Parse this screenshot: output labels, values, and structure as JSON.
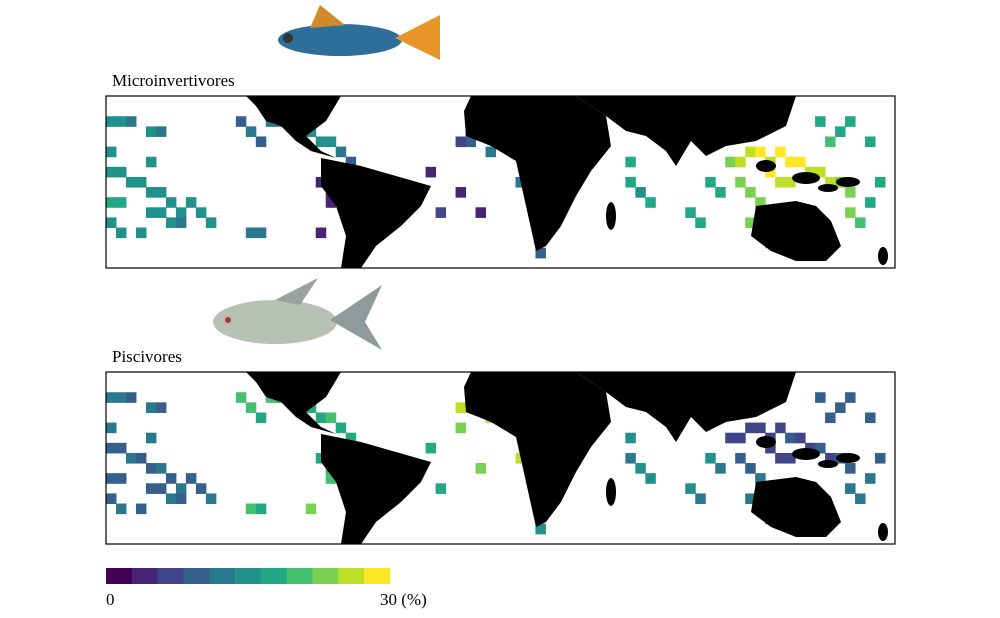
{
  "panels": [
    {
      "title": "Microinvertivores",
      "cells": [
        [
          0,
          2,
          14
        ],
        [
          1,
          2,
          14
        ],
        [
          2,
          2,
          13
        ],
        [
          4,
          3,
          14
        ],
        [
          5,
          3,
          13
        ],
        [
          0,
          5,
          15
        ],
        [
          0,
          7,
          16
        ],
        [
          1,
          7,
          15
        ],
        [
          2,
          8,
          15
        ],
        [
          3,
          8,
          16
        ],
        [
          4,
          9,
          15
        ],
        [
          5,
          9,
          15
        ],
        [
          0,
          10,
          18
        ],
        [
          1,
          10,
          18
        ],
        [
          0,
          12,
          16
        ],
        [
          4,
          6,
          16
        ],
        [
          4,
          11,
          15
        ],
        [
          5,
          11,
          14
        ],
        [
          6,
          10,
          14
        ],
        [
          7,
          11,
          15
        ],
        [
          8,
          10,
          15
        ],
        [
          9,
          11,
          14
        ],
        [
          10,
          12,
          14
        ],
        [
          7,
          12,
          13
        ],
        [
          6,
          12,
          14
        ],
        [
          3,
          13,
          14
        ],
        [
          1,
          13,
          15
        ],
        [
          14,
          13,
          13
        ],
        [
          15,
          13,
          13
        ],
        [
          13,
          2,
          10
        ],
        [
          14,
          3,
          11
        ],
        [
          15,
          4,
          10
        ],
        [
          16,
          2,
          11
        ],
        [
          17,
          2,
          12
        ],
        [
          19,
          3,
          14
        ],
        [
          20,
          3,
          15
        ],
        [
          21,
          4,
          16
        ],
        [
          22,
          4,
          14
        ],
        [
          23,
          5,
          12
        ],
        [
          24,
          6,
          10
        ],
        [
          21,
          8,
          5
        ],
        [
          22,
          9,
          4
        ],
        [
          22,
          10,
          3
        ],
        [
          21,
          13,
          3
        ],
        [
          32,
          7,
          5
        ],
        [
          33,
          11,
          8
        ],
        [
          36,
          3,
          10
        ],
        [
          36,
          4,
          9
        ],
        [
          35,
          4,
          8
        ],
        [
          37,
          2,
          11
        ],
        [
          38,
          5,
          12
        ],
        [
          35,
          9,
          3
        ],
        [
          37,
          11,
          4
        ],
        [
          43,
          15,
          10
        ],
        [
          41,
          8,
          13
        ],
        [
          52,
          6,
          18
        ],
        [
          52,
          8,
          17
        ],
        [
          53,
          9,
          16
        ],
        [
          54,
          10,
          17
        ],
        [
          55,
          3,
          16
        ],
        [
          56,
          4,
          17
        ],
        [
          57,
          2,
          16
        ],
        [
          47,
          2,
          20
        ],
        [
          60,
          8,
          19
        ],
        [
          61,
          9,
          18
        ],
        [
          58,
          11,
          18
        ],
        [
          59,
          12,
          17
        ],
        [
          62,
          6,
          24
        ],
        [
          63,
          6,
          25
        ],
        [
          64,
          5,
          27
        ],
        [
          65,
          5,
          28
        ],
        [
          66,
          6,
          27
        ],
        [
          67,
          5,
          28
        ],
        [
          68,
          6,
          29
        ],
        [
          69,
          6,
          28
        ],
        [
          70,
          7,
          27
        ],
        [
          71,
          7,
          26
        ],
        [
          72,
          8,
          25
        ],
        [
          73,
          8,
          24
        ],
        [
          74,
          9,
          23
        ],
        [
          66,
          7,
          28
        ],
        [
          67,
          8,
          27
        ],
        [
          68,
          8,
          27
        ],
        [
          63,
          8,
          23
        ],
        [
          64,
          9,
          24
        ],
        [
          65,
          10,
          22
        ],
        [
          64,
          12,
          23
        ],
        [
          65,
          13,
          22
        ],
        [
          66,
          14,
          21
        ],
        [
          74,
          11,
          22
        ],
        [
          75,
          12,
          20
        ],
        [
          76,
          10,
          19
        ],
        [
          77,
          8,
          18
        ],
        [
          72,
          4,
          20
        ],
        [
          73,
          3,
          19
        ],
        [
          74,
          2,
          18
        ],
        [
          71,
          2,
          17
        ],
        [
          76,
          4,
          18
        ]
      ]
    },
    {
      "title": "Piscivores",
      "cells": [
        [
          0,
          2,
          11
        ],
        [
          1,
          2,
          11
        ],
        [
          2,
          2,
          10
        ],
        [
          4,
          3,
          11
        ],
        [
          5,
          3,
          10
        ],
        [
          0,
          5,
          11
        ],
        [
          0,
          7,
          10
        ],
        [
          1,
          7,
          10
        ],
        [
          2,
          8,
          11
        ],
        [
          3,
          8,
          10
        ],
        [
          4,
          9,
          10
        ],
        [
          5,
          9,
          11
        ],
        [
          0,
          10,
          9
        ],
        [
          1,
          10,
          10
        ],
        [
          0,
          12,
          10
        ],
        [
          4,
          6,
          11
        ],
        [
          4,
          11,
          10
        ],
        [
          5,
          11,
          10
        ],
        [
          6,
          10,
          10
        ],
        [
          7,
          11,
          11
        ],
        [
          8,
          10,
          10
        ],
        [
          9,
          11,
          10
        ],
        [
          10,
          12,
          11
        ],
        [
          7,
          12,
          10
        ],
        [
          6,
          12,
          11
        ],
        [
          3,
          13,
          10
        ],
        [
          1,
          13,
          11
        ],
        [
          14,
          13,
          20
        ],
        [
          15,
          13,
          19
        ],
        [
          20,
          13,
          23
        ],
        [
          13,
          2,
          21
        ],
        [
          14,
          3,
          20
        ],
        [
          15,
          4,
          19
        ],
        [
          16,
          2,
          20
        ],
        [
          17,
          2,
          18
        ],
        [
          19,
          3,
          17
        ],
        [
          20,
          3,
          18
        ],
        [
          21,
          4,
          19
        ],
        [
          22,
          4,
          20
        ],
        [
          23,
          5,
          19
        ],
        [
          24,
          6,
          18
        ],
        [
          21,
          8,
          18
        ],
        [
          22,
          9,
          19
        ],
        [
          22,
          10,
          20
        ],
        [
          32,
          7,
          19
        ],
        [
          33,
          11,
          18
        ],
        [
          36,
          2,
          26
        ],
        [
          36,
          3,
          26
        ],
        [
          35,
          3,
          25
        ],
        [
          37,
          2,
          24
        ],
        [
          38,
          4,
          25
        ],
        [
          35,
          5,
          24
        ],
        [
          37,
          9,
          22
        ],
        [
          43,
          15,
          16
        ],
        [
          41,
          8,
          25
        ],
        [
          52,
          6,
          14
        ],
        [
          52,
          8,
          13
        ],
        [
          53,
          9,
          14
        ],
        [
          54,
          10,
          15
        ],
        [
          55,
          3,
          13
        ],
        [
          56,
          4,
          14
        ],
        [
          57,
          2,
          13
        ],
        [
          47,
          2,
          17
        ],
        [
          60,
          8,
          14
        ],
        [
          61,
          9,
          13
        ],
        [
          58,
          11,
          14
        ],
        [
          59,
          12,
          13
        ],
        [
          62,
          6,
          8
        ],
        [
          63,
          6,
          8
        ],
        [
          64,
          5,
          7
        ],
        [
          65,
          5,
          8
        ],
        [
          66,
          6,
          7
        ],
        [
          67,
          5,
          8
        ],
        [
          68,
          6,
          9
        ],
        [
          69,
          6,
          8
        ],
        [
          70,
          7,
          8
        ],
        [
          71,
          7,
          9
        ],
        [
          72,
          8,
          8
        ],
        [
          73,
          8,
          9
        ],
        [
          74,
          9,
          9
        ],
        [
          66,
          7,
          7
        ],
        [
          67,
          8,
          8
        ],
        [
          68,
          8,
          8
        ],
        [
          63,
          8,
          9
        ],
        [
          64,
          9,
          10
        ],
        [
          65,
          10,
          12
        ],
        [
          64,
          12,
          13
        ],
        [
          65,
          13,
          14
        ],
        [
          66,
          14,
          15
        ],
        [
          74,
          11,
          12
        ],
        [
          75,
          12,
          13
        ],
        [
          76,
          10,
          11
        ],
        [
          77,
          8,
          10
        ],
        [
          72,
          4,
          9
        ],
        [
          73,
          3,
          10
        ],
        [
          74,
          2,
          10
        ],
        [
          71,
          2,
          9
        ],
        [
          76,
          4,
          10
        ]
      ]
    }
  ],
  "colorbar": {
    "colors": [
      "#440154",
      "#482475",
      "#414487",
      "#355f8d",
      "#2a788e",
      "#21918c",
      "#22a884",
      "#44bf70",
      "#7ad151",
      "#bddf26",
      "#fde725"
    ],
    "min": 0,
    "max": {
      "value": 30,
      "label": "30 (%)"
    }
  }
}
